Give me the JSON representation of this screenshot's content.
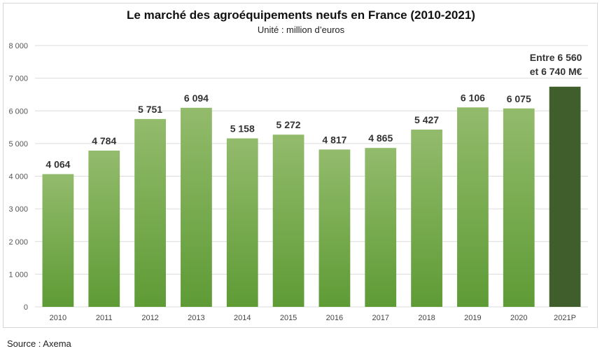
{
  "chart_data": {
    "type": "bar",
    "title": "Le marché des agroéquipements neufs en France (2010-2021)",
    "subtitle": "Unité : million d’euros",
    "source": "Source : Axema",
    "categories": [
      "2010",
      "2011",
      "2012",
      "2013",
      "2014",
      "2015",
      "2016",
      "2017",
      "2018",
      "2019",
      "2020",
      "2021P"
    ],
    "values": [
      4064,
      4784,
      5751,
      6094,
      5158,
      5272,
      4817,
      4865,
      5427,
      6106,
      6075,
      6740
    ],
    "value_labels": [
      "4 064",
      "4 784",
      "5 751",
      "6 094",
      "5 158",
      "5 272",
      "4 817",
      "4 865",
      "5 427",
      "6 106",
      "6 075",
      ""
    ],
    "annotation_2021P": [
      "Entre 6 560",
      "et 6 740 M€"
    ],
    "y_ticks": [
      0,
      1000,
      2000,
      3000,
      4000,
      5000,
      6000,
      7000,
      8000
    ],
    "y_tick_labels": [
      "0",
      "1 000",
      "2 000",
      "3 000",
      "4 000",
      "5 000",
      "6 000",
      "7 000",
      "8 000"
    ],
    "ylim": [
      0,
      8000
    ],
    "grid": true,
    "colors": {
      "bar_top": "#93bb6c",
      "bar_bottom": "#5e9b35",
      "forecast_bar": "#3f5e2b"
    }
  }
}
